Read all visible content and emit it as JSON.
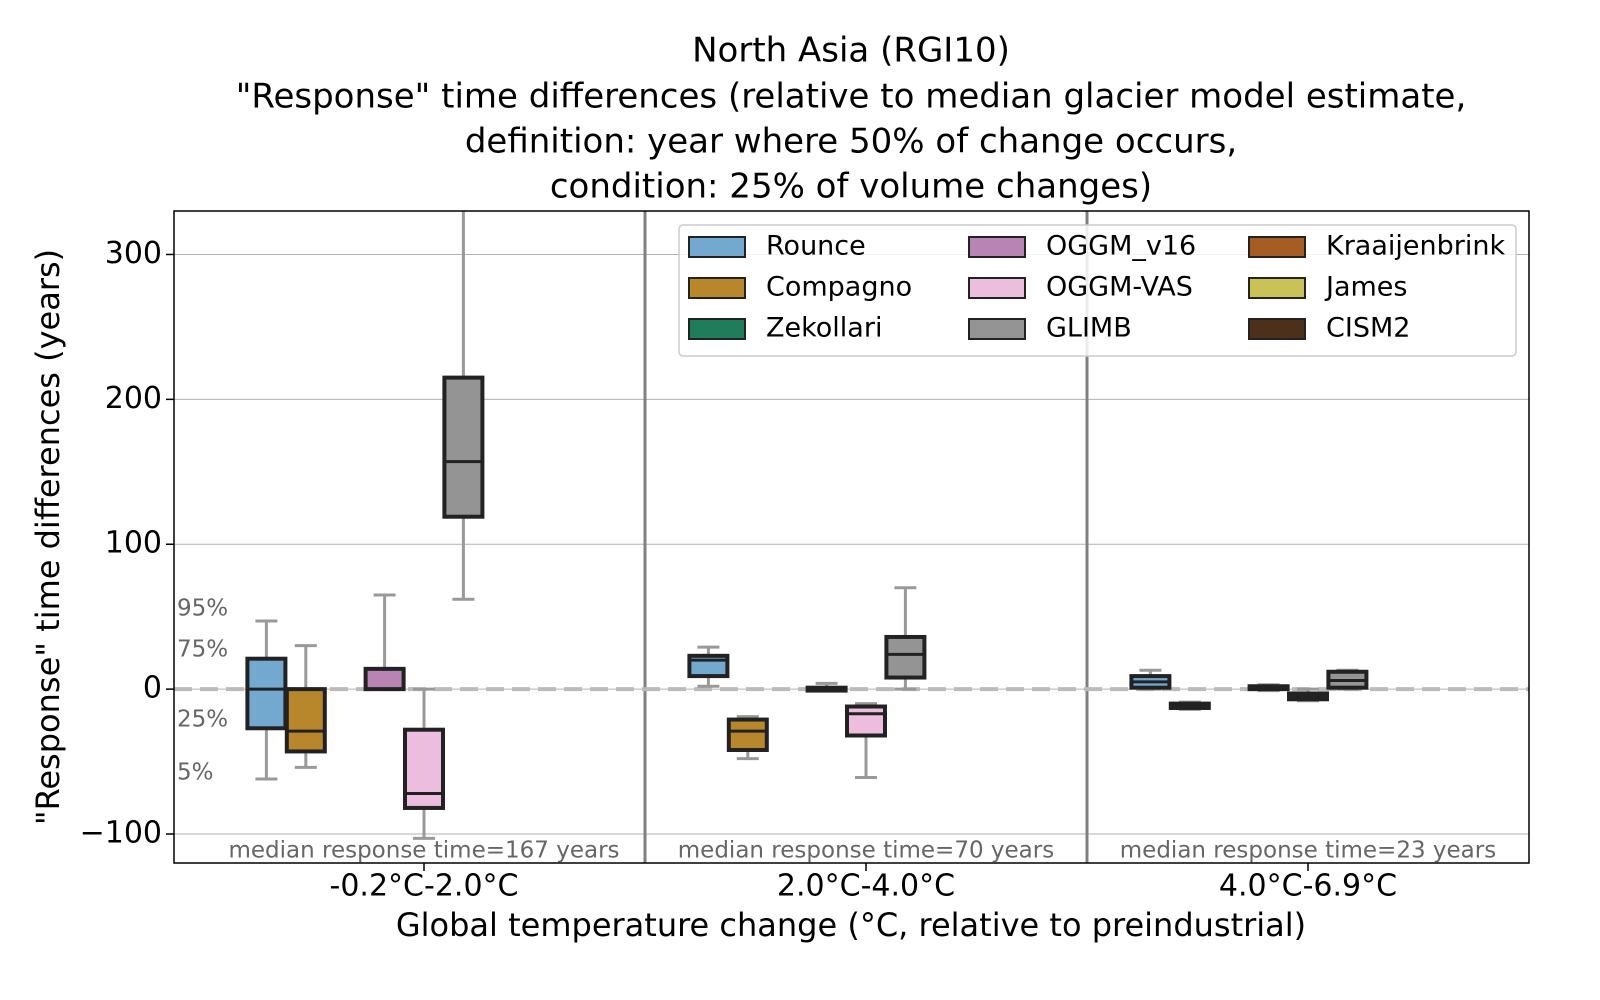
{
  "chart_data": {
    "type": "box",
    "title": [
      "North Asia (RGI10)",
      "\"Response\" time differences (relative to median glacier model estimate,",
      "definition: year where 50% of change occurs,",
      "condition: 25% of volume changes)"
    ],
    "x_label": "Global temperature change (°C, relative to preindustrial)",
    "y_label": "\"Response\" time differences (years)",
    "categories": [
      "-0.2°C-2.0°C",
      "2.0°C-4.0°C",
      "4.0°C-6.9°C"
    ],
    "group_notes": [
      "median response time=167 years",
      "median response time=70 years",
      "median response time=23 years"
    ],
    "box_legend_labels": [
      "95%",
      "75%",
      "25%",
      "5%"
    ],
    "reference_line": 0,
    "ylim": [
      -120,
      330
    ],
    "yticks": [
      {
        "value": -100,
        "label": "−100"
      },
      0,
      100,
      200,
      300
    ],
    "grid": true,
    "legend": {
      "loc": "upper right",
      "ncol": 3
    },
    "series": [
      {
        "name": "Rounce",
        "color": "#74a9cf",
        "values": [
          {
            "low": -62,
            "q1": -27,
            "median": 0,
            "q3": 21,
            "high": 47
          },
          {
            "low": 2,
            "q1": 9,
            "median": 20,
            "q3": 23,
            "high": 29
          },
          {
            "low": 0,
            "q1": 1,
            "median": 5,
            "q3": 9,
            "high": 13
          }
        ]
      },
      {
        "name": "Compagno",
        "color": "#b8862b",
        "values": [
          {
            "low": -54,
            "q1": -43,
            "median": -29,
            "q3": 0,
            "high": 30
          },
          {
            "low": -48,
            "q1": -42,
            "median": -29,
            "q3": -21,
            "high": -19
          },
          {
            "low": -14,
            "q1": -13,
            "median": -12,
            "q3": -10,
            "high": -9
          }
        ]
      },
      {
        "name": "Zekollari",
        "color": "#1f7d5c",
        "values": [
          null,
          null,
          null
        ]
      },
      {
        "name": "OGGM_v16",
        "color": "#b884b4",
        "values": [
          {
            "low": 0,
            "q1": 0,
            "median": 0,
            "q3": 14,
            "high": 65
          },
          {
            "low": -1,
            "q1": -1,
            "median": 0,
            "q3": 1,
            "high": 4
          },
          {
            "low": -1,
            "q1": 0,
            "median": 1,
            "q3": 2,
            "high": 3
          }
        ]
      },
      {
        "name": "OGGM-VAS",
        "color": "#ecbddc",
        "values": [
          {
            "low": -103,
            "q1": -82,
            "median": -72,
            "q3": -28,
            "high": 0
          },
          {
            "low": -61,
            "q1": -32,
            "median": -17,
            "q3": -12,
            "high": -10
          },
          {
            "low": -8,
            "q1": -7,
            "median": -5,
            "q3": -3,
            "high": 0
          }
        ]
      },
      {
        "name": "GLIMB",
        "color": "#949494",
        "values": [
          {
            "low": 62,
            "q1": 119,
            "median": 157,
            "q3": 215,
            "high": 340
          },
          {
            "low": 0,
            "q1": 8,
            "median": 24,
            "q3": 36,
            "high": 70
          },
          {
            "low": 0,
            "q1": 1,
            "median": 6,
            "q3": 12,
            "high": 13
          }
        ]
      },
      {
        "name": "Kraaijenbrink",
        "color": "#a65d24",
        "values": [
          null,
          null,
          null
        ]
      },
      {
        "name": "James",
        "color": "#c9c257",
        "values": [
          null,
          null,
          null
        ]
      },
      {
        "name": "CISM2",
        "color": "#4d3019",
        "values": [
          null,
          null,
          null
        ]
      }
    ]
  }
}
